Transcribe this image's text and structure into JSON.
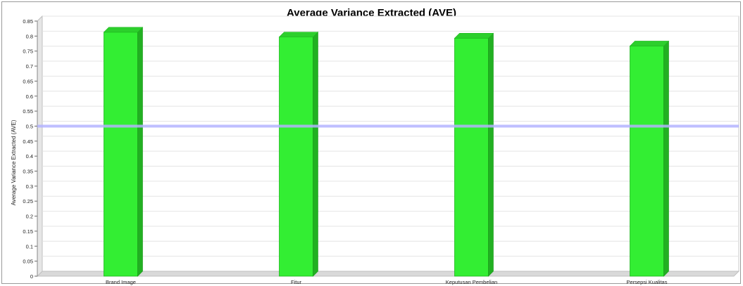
{
  "chart_data": {
    "type": "bar",
    "title": "Average Variance Extracted (AVE)",
    "xlabel": "",
    "ylabel": "Average Variance Extracted (AVE)",
    "categories": [
      "Brand Image",
      "Fitur",
      "Keputusan Pembelian",
      "Persepsi Kualitas"
    ],
    "series": [
      {
        "values": [
          0.813,
          0.797,
          0.793,
          0.767
        ]
      }
    ],
    "ylim": [
      0,
      0.85
    ],
    "yticks": [
      "0",
      "0.05",
      "0.1",
      "0.15",
      "0.2",
      "0.25",
      "0.3",
      "0.35",
      "0.4",
      "0.45",
      "0.5",
      "0.55",
      "0.6",
      "0.65",
      "0.7",
      "0.75",
      "0.8",
      "0.85"
    ],
    "reference_line": {
      "value": 0.5,
      "color": "#b3b3ff"
    },
    "bar_color": "#33ee33",
    "grid": true
  }
}
